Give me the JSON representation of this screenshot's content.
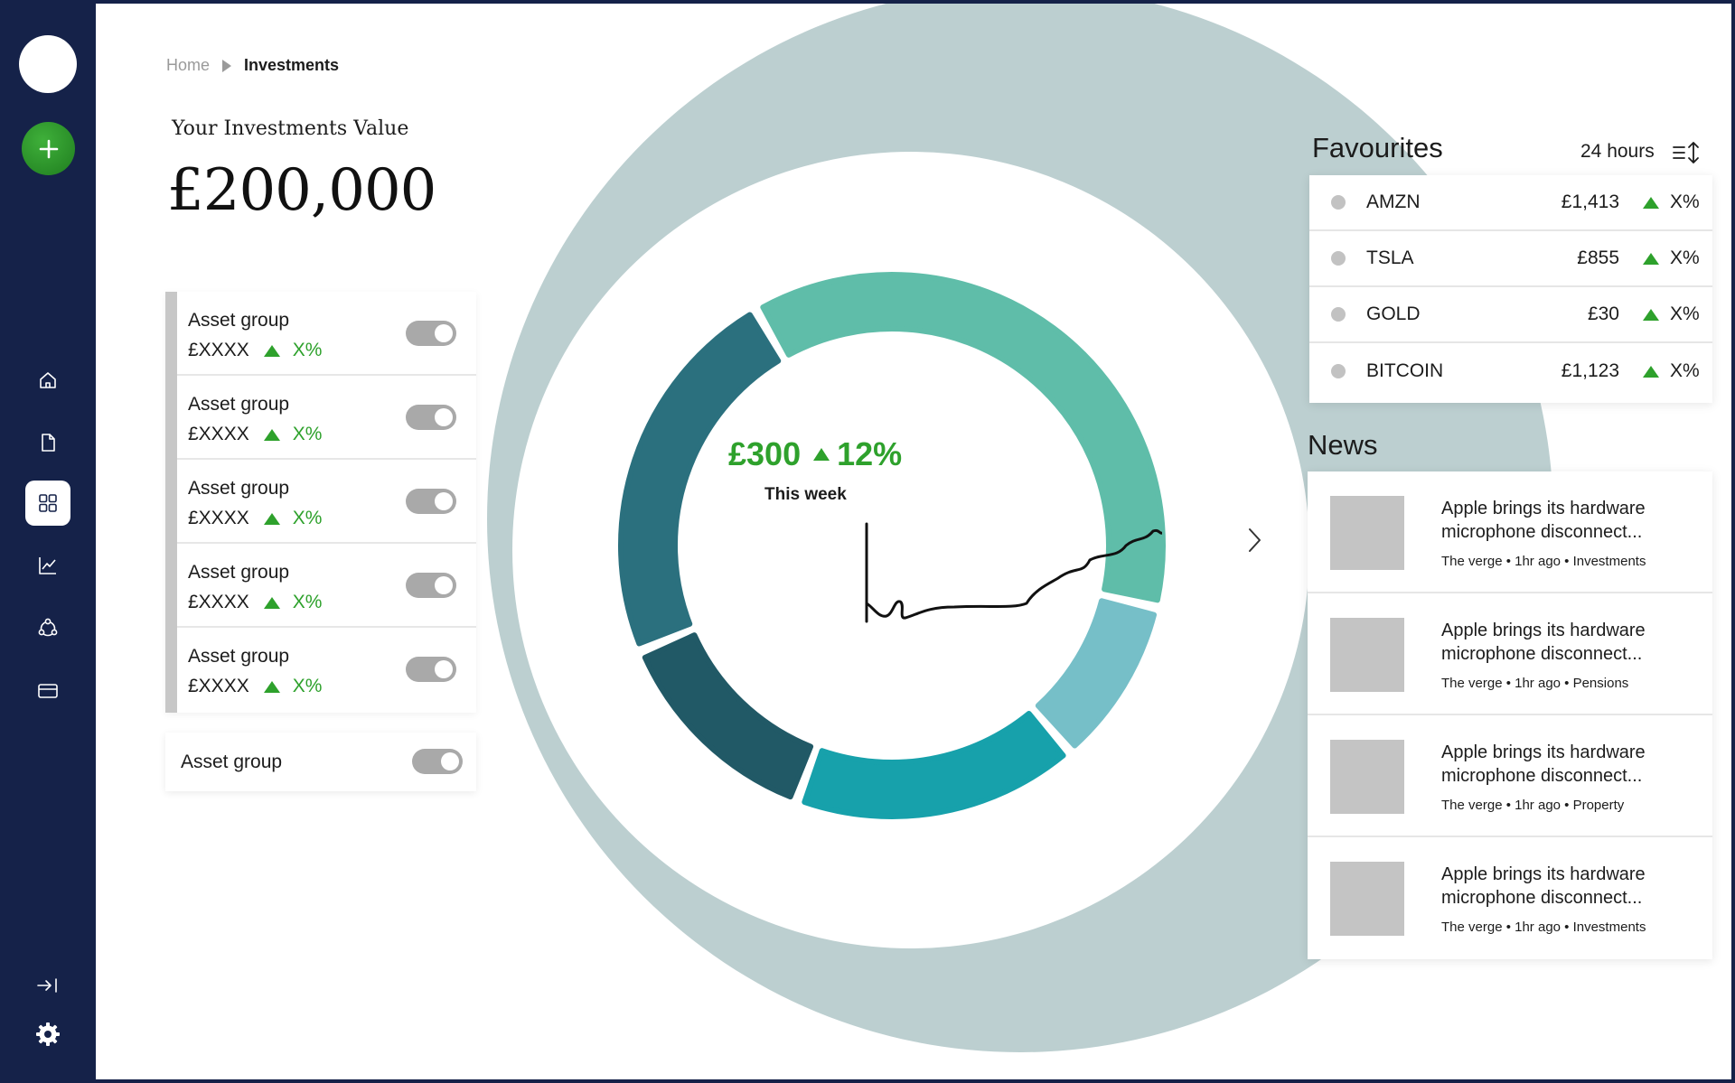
{
  "sidebar": {
    "items": [
      {
        "icon": "home-icon",
        "active": false
      },
      {
        "icon": "document-icon",
        "active": false
      },
      {
        "icon": "grid-icon",
        "active": true
      },
      {
        "icon": "chart-line-icon",
        "active": false
      },
      {
        "icon": "network-icon",
        "active": false
      },
      {
        "icon": "card-icon",
        "active": false
      }
    ],
    "add_symbol": "+"
  },
  "breadcrumb": {
    "home": "Home",
    "current": "Investments"
  },
  "investments": {
    "label": "Your Investments Value",
    "amount": "£200,000"
  },
  "asset_groups": [
    {
      "name": "Asset group",
      "value": "£XXXX",
      "change": "X%",
      "enabled": true
    },
    {
      "name": "Asset group",
      "value": "£XXXX",
      "change": "X%",
      "enabled": true
    },
    {
      "name": "Asset group",
      "value": "£XXXX",
      "change": "X%",
      "enabled": true
    },
    {
      "name": "Asset group",
      "value": "£XXXX",
      "change": "X%",
      "enabled": true
    },
    {
      "name": "Asset group",
      "value": "£XXXX",
      "change": "X%",
      "enabled": true
    }
  ],
  "asset_single": {
    "name": "Asset group",
    "enabled": true
  },
  "summary": {
    "amount": "£300",
    "percent": "12%",
    "caption": "This week"
  },
  "donut_segments": [
    {
      "color": "#5fbda9",
      "share": 0.37
    },
    {
      "color": "#76bfc8",
      "share": 0.1
    },
    {
      "color": "#17a1ab",
      "share": 0.17
    },
    {
      "color": "#215966",
      "share": 0.13
    },
    {
      "color": "#2b707e",
      "share": 0.23
    }
  ],
  "colors": {
    "accent_green": "#2ea12c",
    "sidebar_bg": "#152249",
    "ring": "#bccfd0"
  },
  "favourites": {
    "title": "Favourites",
    "range": "24 hours",
    "items": [
      {
        "ticker": "AMZN",
        "price": "£1,413",
        "change": "X%"
      },
      {
        "ticker": "TSLA",
        "price": "£855",
        "change": "X%"
      },
      {
        "ticker": "GOLD",
        "price": "£30",
        "change": "X%"
      },
      {
        "ticker": "BITCOIN",
        "price": "£1,123",
        "change": "X%"
      }
    ]
  },
  "news": {
    "title": "News",
    "items": [
      {
        "headline": "Apple brings its hardware microphone disconnect...",
        "meta": "The verge • 1hr ago • Investments"
      },
      {
        "headline": "Apple brings its hardware microphone disconnect...",
        "meta": "The verge • 1hr ago • Pensions"
      },
      {
        "headline": "Apple brings its hardware microphone disconnect...",
        "meta": "The verge • 1hr ago • Property"
      },
      {
        "headline": "Apple brings its hardware microphone disconnect...",
        "meta": "The verge • 1hr ago • Investments"
      }
    ]
  }
}
